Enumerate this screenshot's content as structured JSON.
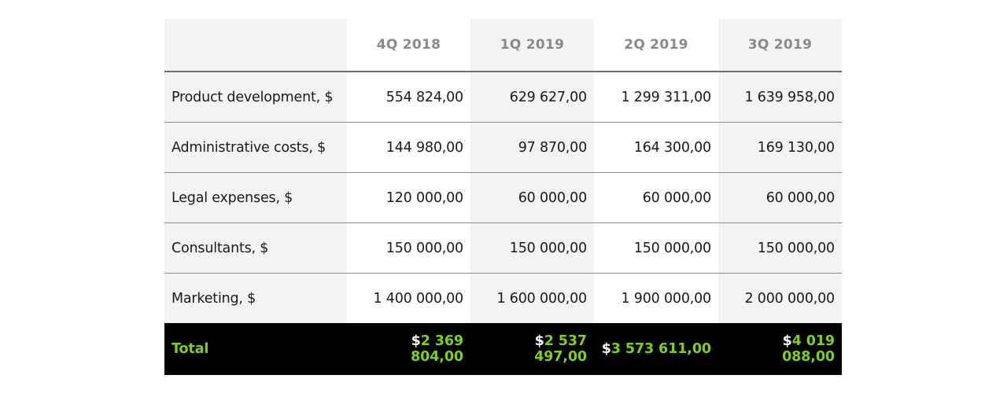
{
  "table": {
    "headers": [
      "",
      "4Q 2018",
      "1Q 2019",
      "2Q 2019",
      "3Q 2019"
    ],
    "rows": [
      {
        "label": "Product development, $",
        "values": [
          "554 824,00",
          "629 627,00",
          "1 299 311,00",
          "1 639 958,00"
        ]
      },
      {
        "label": "Administrative costs, $",
        "values": [
          "144 980,00",
          "97 870,00",
          "164 300,00",
          "169 130,00"
        ]
      },
      {
        "label": "Legal expenses, $",
        "values": [
          "120 000,00",
          "60 000,00",
          "60 000,00",
          "60 000,00"
        ]
      },
      {
        "label": "Consultants, $",
        "values": [
          "150 000,00",
          "150 000,00",
          "150 000,00",
          "150 000,00"
        ]
      },
      {
        "label": "Marketing, $",
        "values": [
          "1 400 000,00",
          "1 600 000,00",
          "1 900 000,00",
          "2 000 000,00"
        ]
      }
    ],
    "total": {
      "label": "Total",
      "currency": "$",
      "values": [
        "2 369 804,00",
        "2 537 497,00",
        "3 573 611,00",
        "4 019 088,00"
      ]
    }
  },
  "colors": {
    "header_text": "#8a8a8a",
    "shaded_column": "#f5f2f5",
    "total_background": "#000000",
    "total_text": "#7fce22",
    "currency_symbol": "#ffffff"
  }
}
